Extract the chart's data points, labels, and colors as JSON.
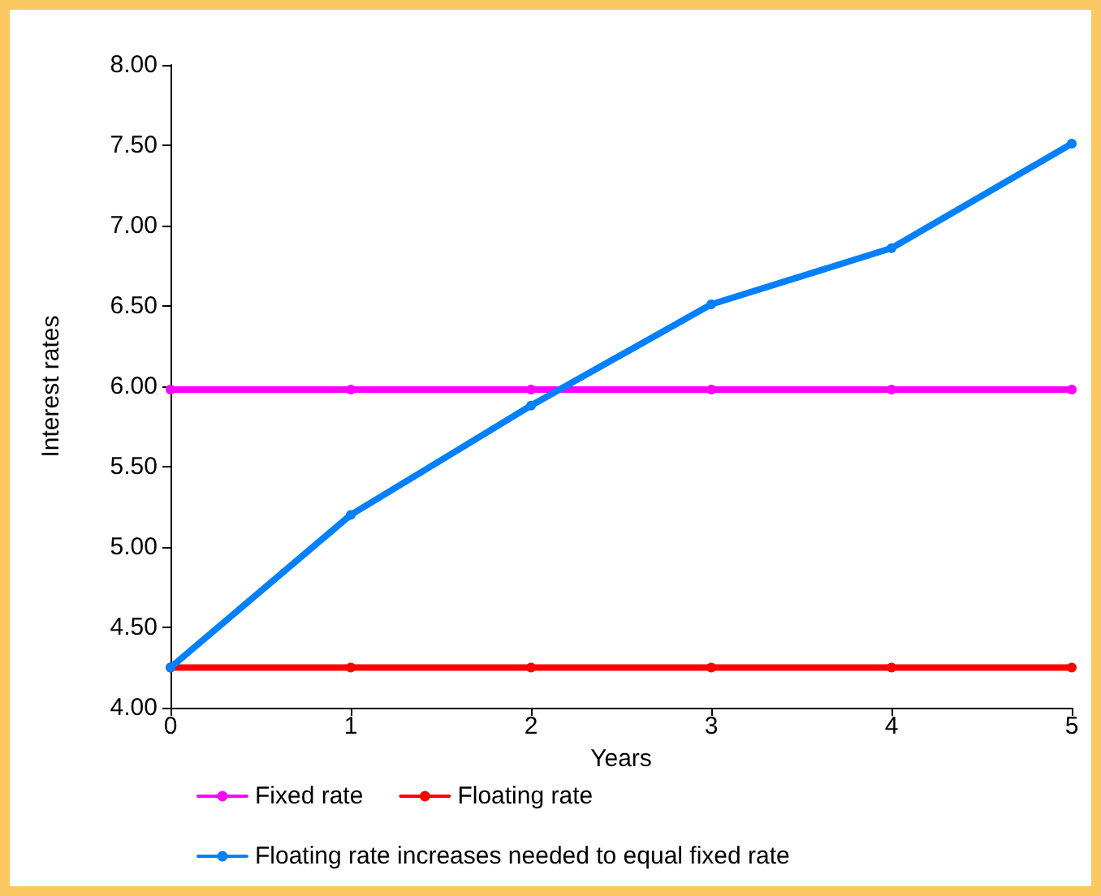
{
  "chart_data": {
    "type": "line",
    "xlabel": "Years",
    "ylabel": "Interest rates",
    "x": [
      0,
      1,
      2,
      3,
      4,
      5
    ],
    "series": [
      {
        "name": "Fixed rate",
        "color": "#ff00ff",
        "values": [
          5.98,
          5.98,
          5.98,
          5.98,
          5.98,
          5.98
        ]
      },
      {
        "name": "Floating rate",
        "color": "#ff0000",
        "values": [
          4.25,
          4.25,
          4.25,
          4.25,
          4.25,
          4.25
        ]
      },
      {
        "name": "Floating rate increases needed to equal fixed rate",
        "color": "#0080ff",
        "values": [
          4.25,
          5.2,
          5.88,
          6.51,
          6.86,
          7.51
        ]
      }
    ],
    "xlim": [
      0,
      5
    ],
    "xticks": [
      0,
      1,
      2,
      3,
      4,
      5
    ],
    "ylim": [
      4,
      8
    ],
    "yticks": [
      {
        "value": 4,
        "label": "4.00"
      },
      {
        "value": 4.5,
        "label": "4.50"
      },
      {
        "value": 5,
        "label": "5.00"
      },
      {
        "value": 5.5,
        "label": "5.50"
      },
      {
        "value": 6,
        "label": "6.00"
      },
      {
        "value": 6.5,
        "label": "6.50"
      },
      {
        "value": 7,
        "label": "7.00"
      },
      {
        "value": 7.5,
        "label": "7.50"
      },
      {
        "value": 8,
        "label": "8.00"
      }
    ],
    "grid": false,
    "legend": "bottom left",
    "marker": "circle",
    "line_style": "solid"
  }
}
